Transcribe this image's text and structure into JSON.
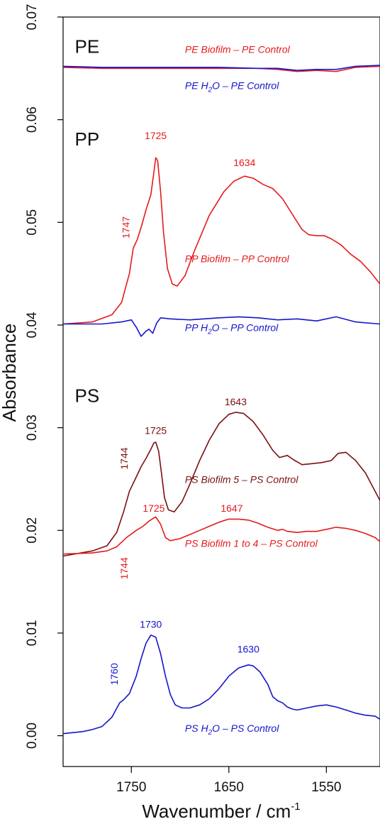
{
  "chart_data": {
    "type": "line",
    "xlabel": "Wavenumber / cm",
    "xlabel_sup": "-1",
    "ylabel": "Absorbance",
    "xlim": [
      1820,
      1495
    ],
    "ylim": [
      -0.003,
      0.07
    ],
    "x_ticks": [
      {
        "value": 1750,
        "label": "1750"
      },
      {
        "value": 1650,
        "label": "1650"
      },
      {
        "value": 1550,
        "label": "1550"
      }
    ],
    "y_ticks": [
      {
        "value": 0.0,
        "label": "0.00"
      },
      {
        "value": 0.01,
        "label": "0.01"
      },
      {
        "value": 0.02,
        "label": "0.02"
      },
      {
        "value": 0.03,
        "label": "0.03"
      },
      {
        "value": 0.04,
        "label": "0.04"
      },
      {
        "value": 0.05,
        "label": "0.05"
      },
      {
        "value": 0.06,
        "label": "0.06"
      },
      {
        "value": 0.07,
        "label": "0.07"
      }
    ],
    "panel_labels": [
      {
        "text": "PE",
        "x": 1808,
        "y": 0.0665
      },
      {
        "text": "PP",
        "x": 1808,
        "y": 0.0575
      },
      {
        "text": "PS",
        "x": 1808,
        "y": 0.0325
      }
    ],
    "series": [
      {
        "name": "PE Biofilm – PE Control",
        "color": "#e41a1c",
        "label": {
          "pre": "PE Biofilm – PE Control",
          "sub": "",
          "post": "",
          "x": 1695,
          "y": 0.0665
        },
        "x": [
          1820,
          1780,
          1740,
          1700,
          1660,
          1620,
          1600,
          1580,
          1560,
          1540,
          1520,
          1495
        ],
        "y": [
          0.0651,
          0.065,
          0.065,
          0.065,
          0.065,
          0.065,
          0.0649,
          0.0647,
          0.0648,
          0.0647,
          0.0651,
          0.0652
        ],
        "peaks": []
      },
      {
        "name": "PE H2O – PE Control",
        "color": "#1515cc",
        "label": {
          "pre": "PE H",
          "sub": "2",
          "post": "O – PE Control",
          "x": 1695,
          "y": 0.063
        },
        "x": [
          1820,
          1780,
          1740,
          1700,
          1660,
          1620,
          1600,
          1580,
          1560,
          1540,
          1520,
          1495
        ],
        "y": [
          0.0652,
          0.0651,
          0.0651,
          0.0651,
          0.0651,
          0.065,
          0.065,
          0.0648,
          0.0649,
          0.0649,
          0.0652,
          0.0653
        ],
        "peaks": []
      },
      {
        "name": "PP Biofilm – PP Control",
        "color": "#e41a1c",
        "label": {
          "pre": "PP Biofilm – PP Control",
          "sub": "",
          "post": "",
          "x": 1695,
          "y": 0.0461
        },
        "x": [
          1820,
          1790,
          1770,
          1760,
          1752,
          1748,
          1744,
          1740,
          1735,
          1730,
          1727,
          1725,
          1723,
          1720,
          1717,
          1713,
          1708,
          1703,
          1695,
          1685,
          1670,
          1655,
          1645,
          1634,
          1625,
          1615,
          1605,
          1595,
          1585,
          1575,
          1568,
          1560,
          1552,
          1545,
          1535,
          1525,
          1515,
          1505,
          1495
        ],
        "y": [
          0.0401,
          0.0403,
          0.041,
          0.0422,
          0.045,
          0.0475,
          0.0483,
          0.0495,
          0.0512,
          0.0527,
          0.0548,
          0.0563,
          0.056,
          0.053,
          0.049,
          0.0455,
          0.044,
          0.0438,
          0.0448,
          0.0473,
          0.0507,
          0.053,
          0.054,
          0.0545,
          0.0543,
          0.0537,
          0.0533,
          0.0523,
          0.0508,
          0.0493,
          0.0488,
          0.0487,
          0.0487,
          0.0484,
          0.0478,
          0.0469,
          0.0462,
          0.0452,
          0.044
        ],
        "peaks": [
          {
            "text": "1725",
            "x": 1725,
            "y": 0.0581,
            "rotate": false
          },
          {
            "text": "1634",
            "x": 1634,
            "y": 0.0555,
            "rotate": false
          },
          {
            "text": "1747",
            "x": 1752,
            "y": 0.0495,
            "rotate": true
          }
        ]
      },
      {
        "name": "PP H2O – PP Control",
        "color": "#1515cc",
        "label": {
          "pre": "PP H",
          "sub": "2",
          "post": "O – PP Control",
          "x": 1695,
          "y": 0.0394
        },
        "x": [
          1820,
          1780,
          1760,
          1750,
          1745,
          1740,
          1735,
          1732,
          1728,
          1724,
          1720,
          1710,
          1690,
          1660,
          1640,
          1620,
          1600,
          1580,
          1560,
          1540,
          1520,
          1495
        ],
        "y": [
          0.0401,
          0.0401,
          0.0403,
          0.0405,
          0.0398,
          0.0389,
          0.0394,
          0.0396,
          0.0392,
          0.0402,
          0.0407,
          0.0406,
          0.0405,
          0.0407,
          0.0408,
          0.0407,
          0.0405,
          0.0406,
          0.0404,
          0.0408,
          0.0403,
          0.0401
        ],
        "peaks": []
      },
      {
        "name": "PS Biofilm 5 – PS Control",
        "color": "#7a0f12",
        "label": {
          "pre": "PS Biofilm 5 – PS Control",
          "sub": "",
          "post": "",
          "x": 1695,
          "y": 0.0246
        },
        "x": [
          1820,
          1790,
          1775,
          1765,
          1758,
          1752,
          1746,
          1740,
          1735,
          1730,
          1727,
          1725,
          1722,
          1719,
          1716,
          1712,
          1706,
          1698,
          1690,
          1680,
          1670,
          1660,
          1650,
          1643,
          1635,
          1625,
          1615,
          1605,
          1598,
          1590,
          1584,
          1575,
          1565,
          1555,
          1545,
          1538,
          1530,
          1520,
          1510,
          1500,
          1495
        ],
        "y": [
          0.0175,
          0.018,
          0.0185,
          0.0198,
          0.0218,
          0.0238,
          0.025,
          0.0262,
          0.027,
          0.0279,
          0.0285,
          0.0286,
          0.0277,
          0.0255,
          0.0232,
          0.022,
          0.0218,
          0.0228,
          0.0245,
          0.0268,
          0.0288,
          0.0304,
          0.0313,
          0.0315,
          0.0314,
          0.0306,
          0.0293,
          0.0278,
          0.0271,
          0.0273,
          0.0269,
          0.0264,
          0.0265,
          0.0266,
          0.0268,
          0.0275,
          0.0276,
          0.0268,
          0.0256,
          0.0238,
          0.0229
        ],
        "peaks": [
          {
            "text": "1725",
            "x": 1725,
            "y": 0.0294,
            "rotate": false
          },
          {
            "text": "1643",
            "x": 1643,
            "y": 0.0322,
            "rotate": false
          },
          {
            "text": "1744",
            "x": 1754,
            "y": 0.027,
            "rotate": true
          }
        ]
      },
      {
        "name": "PS Biofilm 1 to 4 – PS Control",
        "color": "#e41a1c",
        "label": {
          "pre": "PS Biofilm 1 to 4 – PS Control",
          "sub": "",
          "post": "",
          "x": 1695,
          "y": 0.0184
        },
        "x": [
          1820,
          1790,
          1775,
          1765,
          1755,
          1745,
          1738,
          1732,
          1727,
          1725,
          1720,
          1715,
          1710,
          1700,
          1690,
          1680,
          1670,
          1660,
          1650,
          1647,
          1640,
          1630,
          1620,
          1610,
          1600,
          1595,
          1590,
          1580,
          1570,
          1560,
          1550,
          1540,
          1530,
          1520,
          1510,
          1500,
          1495
        ],
        "y": [
          0.0177,
          0.0178,
          0.018,
          0.0184,
          0.0193,
          0.02,
          0.0204,
          0.0209,
          0.0212,
          0.0213,
          0.0206,
          0.0193,
          0.019,
          0.0192,
          0.0196,
          0.02,
          0.0204,
          0.0208,
          0.0211,
          0.0211,
          0.0211,
          0.021,
          0.0207,
          0.0203,
          0.02,
          0.0201,
          0.0199,
          0.0198,
          0.0199,
          0.0199,
          0.0201,
          0.0203,
          0.0202,
          0.02,
          0.0197,
          0.0193,
          0.0189
        ],
        "peaks": [
          {
            "text": "1725",
            "x": 1727,
            "y": 0.0218,
            "rotate": false
          },
          {
            "text": "1647",
            "x": 1647,
            "y": 0.0218,
            "rotate": false
          },
          {
            "text": "1744",
            "x": 1754,
            "y": 0.0163,
            "rotate": true
          }
        ]
      },
      {
        "name": "PS H2O – PS Control",
        "color": "#1515cc",
        "label": {
          "pre": "PS H",
          "sub": "2",
          "post": "O – PS Control",
          "x": 1695,
          "y": 0.0004
        },
        "x": [
          1820,
          1800,
          1790,
          1780,
          1770,
          1762,
          1758,
          1752,
          1745,
          1740,
          1735,
          1730,
          1725,
          1720,
          1715,
          1710,
          1705,
          1698,
          1690,
          1680,
          1670,
          1660,
          1650,
          1640,
          1630,
          1625,
          1618,
          1610,
          1605,
          1600,
          1595,
          1590,
          1585,
          1580,
          1570,
          1560,
          1550,
          1540,
          1530,
          1520,
          1510,
          1500,
          1495
        ],
        "y": [
          0.0002,
          0.0004,
          0.0006,
          0.0009,
          0.0018,
          0.0032,
          0.0035,
          0.0041,
          0.0058,
          0.0075,
          0.009,
          0.0098,
          0.0096,
          0.008,
          0.0058,
          0.004,
          0.003,
          0.0027,
          0.0027,
          0.003,
          0.0036,
          0.0046,
          0.0058,
          0.0066,
          0.0069,
          0.0068,
          0.0062,
          0.005,
          0.0038,
          0.0034,
          0.0032,
          0.0028,
          0.0026,
          0.0025,
          0.0027,
          0.0029,
          0.003,
          0.0028,
          0.0025,
          0.0022,
          0.002,
          0.0019,
          0.0016
        ],
        "peaks": [
          {
            "text": "1730",
            "x": 1730,
            "y": 0.0105,
            "rotate": false
          },
          {
            "text": "1630",
            "x": 1630,
            "y": 0.0081,
            "rotate": false
          },
          {
            "text": "1760",
            "x": 1764,
            "y": 0.006,
            "rotate": true
          }
        ]
      }
    ]
  }
}
